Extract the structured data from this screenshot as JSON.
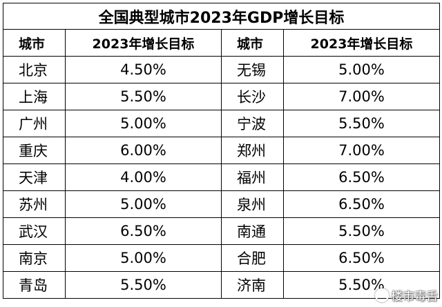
{
  "title": "全国典型城市2023年GDP增长目标",
  "headers": [
    "城市",
    "2023年增长目标",
    "城市",
    "2023年增长目标"
  ],
  "rows": [
    {
      "city1": "北京",
      "val1": "4.50%",
      "city2": "无锡",
      "val2": "5.00%"
    },
    {
      "city1": "上海",
      "val1": "5.50%",
      "city2": "长沙",
      "val2": "7.00%"
    },
    {
      "city1": "广州",
      "val1": "5.00%",
      "city2": "宁波",
      "val2": "5.50%"
    },
    {
      "city1": "重庆",
      "val1": "6.00%",
      "city2": "郑州",
      "val2": "7.00%"
    },
    {
      "city1": "天津",
      "val1": "4.00%",
      "city2": "福州",
      "val2": "6.50%"
    },
    {
      "city1": "苏州",
      "val1": "5.00%",
      "city2": "泉州",
      "val2": "6.50%"
    },
    {
      "city1": "武汉",
      "val1": "6.50%",
      "city2": "南通",
      "val2": "5.50%"
    },
    {
      "city1": "南京",
      "val1": "5.00%",
      "city2": "合肥",
      "val2": "6.50%"
    },
    {
      "city1": "青岛",
      "val1": "5.50%",
      "city2": "济南",
      "val2": "5.50%"
    }
  ],
  "watermark": "楼市毒舌",
  "watermark_icon": "weibo-icon"
}
